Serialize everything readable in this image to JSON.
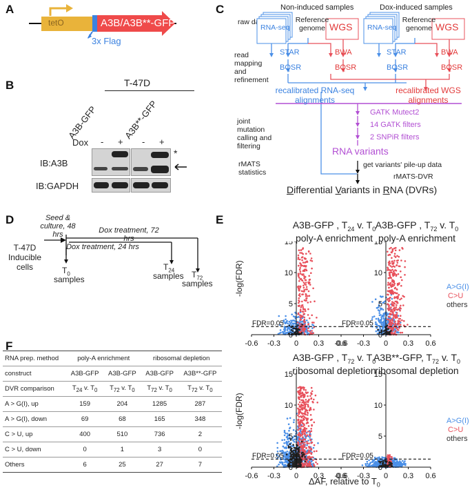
{
  "panel_labels": {
    "a": "A",
    "b": "B",
    "c": "C",
    "d": "D",
    "e": "E",
    "f": "F"
  },
  "panel_a": {
    "promoter": "tetO",
    "gene": "A3B/A3B**-GFP",
    "flag": "3x Flag"
  },
  "panel_b": {
    "cell_line": "T-47D",
    "lane_groups": [
      "A3B-GFP",
      "A3B**-GFP"
    ],
    "dox_label": "Dox",
    "dox_lanes": [
      "-",
      "+",
      "-",
      "+"
    ],
    "blots": [
      "IB:A3B",
      "IB:GAPDH"
    ],
    "star_marker": "*"
  },
  "panel_c": {
    "stages": [
      "raw data",
      "read mapping and refinement",
      "joint mutation calling and filtering",
      "rMATS statistics"
    ],
    "groups": [
      "Non-induced samples",
      "Dox-induced samples"
    ],
    "rnaseq": "RNA-seq",
    "refgenome": "Reference genome",
    "wgs": "WGS",
    "star": "STAR",
    "bqsr": "BQSR",
    "bwa": "BWA",
    "recal_rna": "recalibrated RNA-seq alignments",
    "recal_wgs": "recalibrated WGS alignments",
    "filters": [
      "GATK Mutect2",
      "14 GATK filters",
      "2 SNPiR filters"
    ],
    "rna_variants": "RNA variants",
    "pileup": "get variants' pile-up data",
    "rmats": "rMATS-DVR",
    "dvr_word1_first": "D",
    "dvr_word1_rest": "ifferential ",
    "dvr_word2_first": "V",
    "dvr_word2_rest": "ariants in ",
    "dvr_word3_first": "R",
    "dvr_word3_rest": "NA (DVRs)"
  },
  "panel_d": {
    "cells": "T-47D Inducible cells",
    "seed": "Seed & culture, 48 hrs",
    "dox72": "Dox treatment, 72 hrs",
    "dox24": "Dox treatment, 24 hrs",
    "t0": "T",
    "t0_sub": "0",
    "t24": "T",
    "t24_sub": "24",
    "t72": "T",
    "t72_sub": "72",
    "samples": "samples"
  },
  "panel_e": {
    "ylabel": "-log(FDR)",
    "xlabel_main": "ΔAF, relative to T",
    "xlabel_sub": "0",
    "fdr_label": "FDR=0.05",
    "legend": [
      {
        "label": "A>G(I)",
        "color": "#4a8fe7"
      },
      {
        "label": "C>U",
        "color": "#e8505b"
      },
      {
        "label": "others",
        "color": "#222222"
      }
    ]
  },
  "chart_data": [
    {
      "type": "scatter",
      "title": "A3B-GFP , T24 v. T0 poly-A enrichment",
      "title_l1_main": "A3B-GFP , T",
      "title_l1_s1": "24",
      "title_l1_mid": " v. T",
      "title_l1_s2": "0",
      "title_l2": "poly-A enrichment",
      "xlabel": "ΔAF, relative to T0",
      "ylabel": "-log(FDR)",
      "xlim": [
        -0.6,
        0.6
      ],
      "ylim": [
        0,
        15
      ],
      "xticks": [
        "-0.6",
        "-0.3",
        "0",
        "0.3",
        "0.6"
      ],
      "yticks": [
        "0",
        "5",
        "10",
        "15"
      ],
      "fdr_threshold": 1.3,
      "series": [
        {
          "name": "A>G(I)",
          "color": "#4a8fe7"
        },
        {
          "name": "C>U",
          "color": "#e8505b"
        },
        {
          "name": "others",
          "color": "#222222"
        }
      ]
    },
    {
      "type": "scatter",
      "title": "A3B-GFP , T72 v. T0 poly-A enrichment",
      "title_l1_main": "A3B-GFP , T",
      "title_l1_s1": "72",
      "title_l1_mid": " v. T",
      "title_l1_s2": "0",
      "title_l2": "poly-A enrichment",
      "xlabel": "ΔAF, relative to T0",
      "ylabel": "-log(FDR)",
      "xlim": [
        -0.6,
        0.6
      ],
      "ylim": [
        0,
        15
      ],
      "xticks": [
        "-0.6",
        "-0.3",
        "0",
        "0.3",
        "0.6"
      ],
      "yticks": [
        "0",
        "5",
        "10",
        "15"
      ],
      "fdr_threshold": 1.3,
      "series": [
        {
          "name": "A>G(I)",
          "color": "#4a8fe7"
        },
        {
          "name": "C>U",
          "color": "#e8505b"
        },
        {
          "name": "others",
          "color": "#222222"
        }
      ]
    },
    {
      "type": "scatter",
      "title": "A3B-GFP , T72 v. T0 ribosomal depletion",
      "title_l1_main": "A3B-GFP , T",
      "title_l1_s1": "72",
      "title_l1_mid": " v. T",
      "title_l1_s2": "0",
      "title_l2": "ribosomal depletion",
      "xlabel": "ΔAF, relative to T0",
      "ylabel": "-log(FDR)",
      "xlim": [
        -0.6,
        0.6
      ],
      "ylim": [
        0,
        15
      ],
      "xticks": [
        "-0.6",
        "-0.3",
        "0",
        "0.3",
        "0.6"
      ],
      "yticks": [
        "0",
        "5",
        "10",
        "15"
      ],
      "fdr_threshold": 1.3,
      "series": [
        {
          "name": "A>G(I)",
          "color": "#4a8fe7"
        },
        {
          "name": "C>U",
          "color": "#e8505b"
        },
        {
          "name": "others",
          "color": "#222222"
        }
      ]
    },
    {
      "type": "scatter",
      "title": "A3B**-GFP, T72 v. T0 ribosomal depletion",
      "title_l1_main": "A3B**-GFP, T",
      "title_l1_s1": "72",
      "title_l1_mid": " v. T",
      "title_l1_s2": "0",
      "title_l2": "ribosomal depletion",
      "xlabel": "ΔAF, relative to T0",
      "ylabel": "-log(FDR)",
      "xlim": [
        -0.6,
        0.6
      ],
      "ylim": [
        0,
        15
      ],
      "xticks": [
        "-0.6",
        "-0.3",
        "0",
        "0.3",
        "0.6"
      ],
      "yticks": [
        "0",
        "5",
        "10",
        "15"
      ],
      "fdr_threshold": 1.3,
      "series": [
        {
          "name": "A>G(I)",
          "color": "#4a8fe7"
        },
        {
          "name": "C>U",
          "color": "#e8505b"
        },
        {
          "name": "others",
          "color": "#222222"
        }
      ]
    }
  ],
  "panel_f": {
    "header1": [
      "RNA prep. method",
      "poly-A enrichment",
      "ribosomal depletion"
    ],
    "construct": [
      "construct",
      "A3B-GFP",
      "A3B-GFP",
      "A3B-GFP",
      "A3B**-GFP"
    ],
    "comparison_label": "DVR comparison",
    "comparisons": [
      {
        "s1": "24",
        "s2": "0"
      },
      {
        "s1": "72",
        "s2": "0"
      },
      {
        "s1": "72",
        "s2": "0"
      },
      {
        "s1": "72",
        "s2": "0"
      }
    ],
    "comparison_T": "T",
    "comparison_v": " v. T",
    "rows": [
      {
        "label": "A > G(I), up",
        "values": [
          "159",
          "204",
          "1285",
          "287"
        ]
      },
      {
        "label": "A > G(I), down",
        "values": [
          "69",
          "68",
          "165",
          "348"
        ]
      },
      {
        "label": "C > U, up",
        "values": [
          "400",
          "510",
          "736",
          "2"
        ]
      },
      {
        "label": "C > U, down",
        "values": [
          "0",
          "1",
          "3",
          "0"
        ]
      },
      {
        "label": "Others",
        "values": [
          "6",
          "25",
          "27",
          "7"
        ]
      }
    ]
  }
}
